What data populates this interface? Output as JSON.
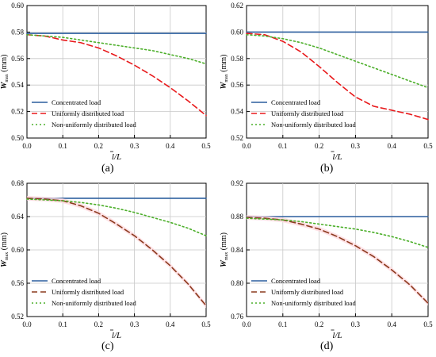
{
  "figure": {
    "legend_labels": {
      "concentrated": "Concentrated load",
      "uniform": "Uniformly distributed load",
      "nonuniform": "Non-uniformly distributed load"
    },
    "ylabel_main": "W",
    "ylabel_sub": "max",
    "ylabel_unit": " (mm)",
    "xlabel_main": "l",
    "xlabel_rest": "/L"
  },
  "colors": {
    "concentrated": "#2c5f9e",
    "uniform_a": "#e8191b",
    "uniform_c": "#8b3a1e",
    "nonuniform": "#4caf2a",
    "grid": "#c8c8c8",
    "band": "#ffd6dc"
  },
  "chart_data": [
    {
      "type": "line",
      "label": "(a)",
      "xlim": [
        0.0,
        0.5
      ],
      "ylim": [
        0.5,
        0.6
      ],
      "xticks": [
        "0.0",
        "0.1",
        "0.2",
        "0.3",
        "0.4",
        "0.5"
      ],
      "yticks": [
        "0.50",
        "0.52",
        "0.54",
        "0.56",
        "0.58",
        "0.60"
      ],
      "ytick_values": [
        0.5,
        0.52,
        0.54,
        0.56,
        0.58,
        0.6
      ],
      "grid": true,
      "legend": "lower-left",
      "uniform_color_key": "uniform_a",
      "band": false,
      "x": [
        0.0,
        0.05,
        0.1,
        0.15,
        0.2,
        0.25,
        0.3,
        0.35,
        0.4,
        0.45,
        0.5
      ],
      "series": [
        {
          "name": "Concentrated load",
          "key": "concentrated",
          "values": [
            0.579,
            0.579,
            0.579,
            0.579,
            0.579,
            0.579,
            0.579,
            0.579,
            0.579,
            0.579,
            0.579
          ]
        },
        {
          "name": "Uniformly distributed load",
          "key": "uniform",
          "values": [
            0.578,
            0.577,
            0.574,
            0.572,
            0.568,
            0.562,
            0.555,
            0.547,
            0.538,
            0.528,
            0.517
          ]
        },
        {
          "name": "Non-uniformly distributed load",
          "key": "nonuniform",
          "values": [
            0.578,
            0.577,
            0.576,
            0.574,
            0.572,
            0.57,
            0.568,
            0.566,
            0.563,
            0.56,
            0.556
          ]
        }
      ]
    },
    {
      "type": "line",
      "label": "(b)",
      "xlim": [
        0.0,
        0.5
      ],
      "ylim": [
        0.52,
        0.62
      ],
      "xticks": [
        "0.0",
        "0.1",
        "0.2",
        "0.3",
        "0.4",
        "0.5"
      ],
      "yticks": [
        "0.52",
        "0.54",
        "0.56",
        "0.58",
        "0.60",
        "0.62"
      ],
      "ytick_values": [
        0.52,
        0.54,
        0.56,
        0.58,
        0.6,
        0.62
      ],
      "grid": true,
      "legend": "lower-left",
      "uniform_color_key": "uniform_a",
      "band": false,
      "x": [
        0.0,
        0.05,
        0.1,
        0.15,
        0.2,
        0.25,
        0.3,
        0.35,
        0.4,
        0.45,
        0.5
      ],
      "series": [
        {
          "name": "Concentrated load",
          "key": "concentrated",
          "values": [
            0.6,
            0.6,
            0.6,
            0.6,
            0.6,
            0.6,
            0.6,
            0.6,
            0.6,
            0.6,
            0.6
          ]
        },
        {
          "name": "Uniformly distributed load",
          "key": "uniform",
          "values": [
            0.599,
            0.598,
            0.593,
            0.585,
            0.574,
            0.562,
            0.551,
            0.544,
            0.541,
            0.538,
            0.534
          ]
        },
        {
          "name": "Non-uniformly distributed load",
          "key": "nonuniform",
          "values": [
            0.598,
            0.597,
            0.595,
            0.592,
            0.588,
            0.583,
            0.578,
            0.573,
            0.568,
            0.563,
            0.558
          ]
        }
      ]
    },
    {
      "type": "line",
      "label": "(c)",
      "xlim": [
        0.0,
        0.5
      ],
      "ylim": [
        0.52,
        0.68
      ],
      "xticks": [
        "0.0",
        "0.1",
        "0.2",
        "0.3",
        "0.4",
        "0.5"
      ],
      "yticks": [
        "0.52",
        "0.56",
        "0.60",
        "0.64",
        "0.68"
      ],
      "ytick_values": [
        0.52,
        0.56,
        0.6,
        0.64,
        0.68
      ],
      "grid": true,
      "legend": "lower-left",
      "uniform_color_key": "uniform_c",
      "band": true,
      "x": [
        0.0,
        0.05,
        0.1,
        0.15,
        0.2,
        0.25,
        0.3,
        0.35,
        0.4,
        0.45,
        0.5
      ],
      "series": [
        {
          "name": "Concentrated load",
          "key": "concentrated",
          "values": [
            0.662,
            0.662,
            0.662,
            0.662,
            0.662,
            0.662,
            0.662,
            0.662,
            0.662,
            0.662,
            0.662
          ]
        },
        {
          "name": "Uniformly distributed load",
          "key": "uniform",
          "values": [
            0.662,
            0.661,
            0.659,
            0.653,
            0.644,
            0.631,
            0.617,
            0.6,
            0.581,
            0.559,
            0.533
          ]
        },
        {
          "name": "Non-uniformly distributed load",
          "key": "nonuniform",
          "values": [
            0.661,
            0.66,
            0.659,
            0.657,
            0.654,
            0.65,
            0.645,
            0.639,
            0.633,
            0.626,
            0.617
          ]
        }
      ]
    },
    {
      "type": "line",
      "label": "(d)",
      "xlim": [
        0.0,
        0.5
      ],
      "ylim": [
        0.76,
        0.92
      ],
      "xticks": [
        "0.0",
        "0.1",
        "0.2",
        "0.3",
        "0.4",
        "0.5"
      ],
      "yticks": [
        "0.76",
        "0.80",
        "0.84",
        "0.88",
        "0.92"
      ],
      "ytick_values": [
        0.76,
        0.8,
        0.84,
        0.88,
        0.92
      ],
      "grid": true,
      "legend": "lower-left",
      "uniform_color_key": "uniform_c",
      "band": true,
      "x": [
        0.0,
        0.05,
        0.1,
        0.15,
        0.2,
        0.25,
        0.3,
        0.35,
        0.4,
        0.45,
        0.5
      ],
      "series": [
        {
          "name": "Concentrated load",
          "key": "concentrated",
          "values": [
            0.88,
            0.88,
            0.88,
            0.88,
            0.88,
            0.88,
            0.88,
            0.88,
            0.88,
            0.88,
            0.88
          ]
        },
        {
          "name": "Uniformly distributed load",
          "key": "uniform",
          "values": [
            0.879,
            0.878,
            0.876,
            0.871,
            0.865,
            0.856,
            0.845,
            0.832,
            0.816,
            0.798,
            0.776
          ]
        },
        {
          "name": "Non-uniformly distributed load",
          "key": "nonuniform",
          "values": [
            0.878,
            0.877,
            0.876,
            0.874,
            0.871,
            0.868,
            0.865,
            0.861,
            0.856,
            0.85,
            0.843
          ]
        }
      ]
    }
  ]
}
